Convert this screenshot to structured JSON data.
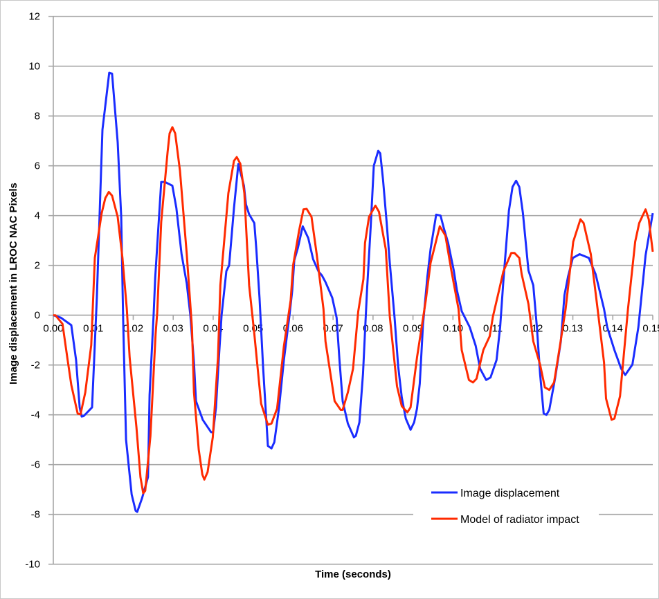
{
  "chart_data": {
    "type": "line",
    "title": "",
    "xlabel": "Time (seconds)",
    "ylabel": "Image displacement in LROC NAC Pixels",
    "xlim": [
      0,
      0.15
    ],
    "ylim": [
      -10,
      12
    ],
    "x_ticks": [
      "0.00",
      "0.01",
      "0.02",
      "0.03",
      "0.04",
      "0.05",
      "0.06",
      "0.07",
      "0.08",
      "0.09",
      "0.10",
      "0.11",
      "0.12",
      "0.13",
      "0.14",
      "0.15"
    ],
    "y_ticks": [
      "-10",
      "-8",
      "-6",
      "-4",
      "-2",
      "0",
      "2",
      "4",
      "6",
      "8",
      "10",
      "12"
    ],
    "grid": "horizontal",
    "legend_position": "bottom-right",
    "series": [
      {
        "name": "Image displacement",
        "color": "#1a2cff",
        "points": [
          [
            0,
            0
          ],
          [
            0.0019,
            -0.1
          ],
          [
            0.0045,
            -0.4
          ],
          [
            0.0057,
            -1.8
          ],
          [
            0.0066,
            -3.7
          ],
          [
            0.0071,
            -4.07
          ],
          [
            0.0076,
            -4.05
          ],
          [
            0.0097,
            -3.7
          ],
          [
            0.0109,
            0.7
          ],
          [
            0.0123,
            7.45
          ],
          [
            0.014,
            9.74
          ],
          [
            0.0147,
            9.7
          ],
          [
            0.0161,
            6.95
          ],
          [
            0.017,
            3.95
          ],
          [
            0.0175,
            -0.3
          ],
          [
            0.0182,
            -5.0
          ],
          [
            0.0196,
            -7.2
          ],
          [
            0.0206,
            -7.85
          ],
          [
            0.021,
            -7.9
          ],
          [
            0.0222,
            -7.35
          ],
          [
            0.0237,
            -6.5
          ],
          [
            0.0241,
            -3.2
          ],
          [
            0.0251,
            0
          ],
          [
            0.0255,
            1.5
          ],
          [
            0.027,
            5.35
          ],
          [
            0.0279,
            5.35
          ],
          [
            0.0288,
            5.28
          ],
          [
            0.0298,
            5.2
          ],
          [
            0.0308,
            4.3
          ],
          [
            0.0321,
            2.45
          ],
          [
            0.0334,
            1.27
          ],
          [
            0.0343,
            0
          ],
          [
            0.0352,
            -1.9
          ],
          [
            0.0357,
            -3.45
          ],
          [
            0.0374,
            -4.2
          ],
          [
            0.0395,
            -4.7
          ],
          [
            0.04,
            -4.7
          ],
          [
            0.0407,
            -3.7
          ],
          [
            0.0414,
            -1.8
          ],
          [
            0.0421,
            0
          ],
          [
            0.0433,
            1.77
          ],
          [
            0.044,
            2.0
          ],
          [
            0.0452,
            4.3
          ],
          [
            0.0463,
            6.07
          ],
          [
            0.0477,
            5.2
          ],
          [
            0.0482,
            4.45
          ],
          [
            0.049,
            4.05
          ],
          [
            0.0503,
            3.7
          ],
          [
            0.0508,
            2.65
          ],
          [
            0.0516,
            0.7
          ],
          [
            0.0525,
            -2.1
          ],
          [
            0.0537,
            -5.25
          ],
          [
            0.0546,
            -5.35
          ],
          [
            0.0553,
            -5.1
          ],
          [
            0.0565,
            -3.7
          ],
          [
            0.0577,
            -1.8
          ],
          [
            0.0591,
            0
          ],
          [
            0.0598,
            1.0
          ],
          [
            0.0603,
            2.2
          ],
          [
            0.0612,
            2.7
          ],
          [
            0.0624,
            3.57
          ],
          [
            0.0638,
            3.1
          ],
          [
            0.065,
            2.25
          ],
          [
            0.0664,
            1.75
          ],
          [
            0.0672,
            1.6
          ],
          [
            0.0681,
            1.33
          ],
          [
            0.0698,
            0.7
          ],
          [
            0.0709,
            -0.1
          ],
          [
            0.0716,
            -1.8
          ],
          [
            0.0724,
            -3.45
          ],
          [
            0.0737,
            -4.35
          ],
          [
            0.0752,
            -4.9
          ],
          [
            0.0757,
            -4.85
          ],
          [
            0.0766,
            -4.3
          ],
          [
            0.0775,
            -2.35
          ],
          [
            0.0785,
            1.0
          ],
          [
            0.0794,
            3.5
          ],
          [
            0.0802,
            6.0
          ],
          [
            0.0813,
            6.6
          ],
          [
            0.0818,
            6.5
          ],
          [
            0.0825,
            5.45
          ],
          [
            0.0834,
            3.75
          ],
          [
            0.0842,
            2.1
          ],
          [
            0.0854,
            -0.1
          ],
          [
            0.0863,
            -2.05
          ],
          [
            0.0872,
            -3.3
          ],
          [
            0.0882,
            -4.15
          ],
          [
            0.0894,
            -4.6
          ],
          [
            0.0903,
            -4.3
          ],
          [
            0.091,
            -3.75
          ],
          [
            0.0917,
            -2.75
          ],
          [
            0.0925,
            -0.4
          ],
          [
            0.0936,
            1.55
          ],
          [
            0.0944,
            2.65
          ],
          [
            0.0958,
            4.04
          ],
          [
            0.0969,
            4.0
          ],
          [
            0.0977,
            3.5
          ],
          [
            0.0988,
            2.9
          ],
          [
            0.1002,
            1.8
          ],
          [
            0.101,
            1.0
          ],
          [
            0.1022,
            0.16
          ],
          [
            0.1042,
            -0.48
          ],
          [
            0.1057,
            -1.23
          ],
          [
            0.1068,
            -2.15
          ],
          [
            0.1083,
            -2.6
          ],
          [
            0.1094,
            -2.5
          ],
          [
            0.1109,
            -1.8
          ],
          [
            0.1118,
            -0.48
          ],
          [
            0.1126,
            1.35
          ],
          [
            0.114,
            4.2
          ],
          [
            0.1149,
            5.15
          ],
          [
            0.1158,
            5.4
          ],
          [
            0.1166,
            5.15
          ],
          [
            0.1175,
            4.1
          ],
          [
            0.1189,
            1.8
          ],
          [
            0.1201,
            1.2
          ],
          [
            0.121,
            -0.48
          ],
          [
            0.1218,
            -2.35
          ],
          [
            0.1227,
            -3.95
          ],
          [
            0.1234,
            -4.0
          ],
          [
            0.1241,
            -3.8
          ],
          [
            0.1256,
            -2.5
          ],
          [
            0.127,
            -1.05
          ],
          [
            0.1279,
            0.8
          ],
          [
            0.1288,
            1.55
          ],
          [
            0.13,
            2.3
          ],
          [
            0.1317,
            2.45
          ],
          [
            0.134,
            2.3
          ],
          [
            0.1357,
            1.65
          ],
          [
            0.1378,
            0.25
          ],
          [
            0.1386,
            -0.48
          ],
          [
            0.1404,
            -1.4
          ],
          [
            0.1421,
            -2.15
          ],
          [
            0.1431,
            -2.4
          ],
          [
            0.1449,
            -1.98
          ],
          [
            0.1464,
            -0.48
          ],
          [
            0.1482,
            2.4
          ],
          [
            0.15,
            4.1
          ]
        ]
      },
      {
        "name": "Model of radiator impact",
        "color": "#ff2a00",
        "points": [
          [
            0,
            0
          ],
          [
            0.0005,
            0
          ],
          [
            0.0023,
            -0.35
          ],
          [
            0.0035,
            -1.7
          ],
          [
            0.0045,
            -2.8
          ],
          [
            0.0061,
            -3.95
          ],
          [
            0.0068,
            -3.98
          ],
          [
            0.008,
            -3.1
          ],
          [
            0.0095,
            -1.2
          ],
          [
            0.0104,
            2.3
          ],
          [
            0.0121,
            4.1
          ],
          [
            0.013,
            4.7
          ],
          [
            0.0139,
            4.95
          ],
          [
            0.0147,
            4.8
          ],
          [
            0.0161,
            3.95
          ],
          [
            0.0173,
            2.3
          ],
          [
            0.0184,
            0.25
          ],
          [
            0.0191,
            -1.7
          ],
          [
            0.0208,
            -4.5
          ],
          [
            0.0218,
            -6.5
          ],
          [
            0.0225,
            -7.15
          ],
          [
            0.023,
            -7.05
          ],
          [
            0.0243,
            -4.85
          ],
          [
            0.0256,
            -0.75
          ],
          [
            0.026,
            0.1
          ],
          [
            0.027,
            3.75
          ],
          [
            0.0286,
            6.55
          ],
          [
            0.0291,
            7.3
          ],
          [
            0.0298,
            7.55
          ],
          [
            0.0305,
            7.3
          ],
          [
            0.0317,
            5.8
          ],
          [
            0.0334,
            2.45
          ],
          [
            0.0347,
            -0.5
          ],
          [
            0.0352,
            -3.1
          ],
          [
            0.0364,
            -5.4
          ],
          [
            0.0373,
            -6.4
          ],
          [
            0.0378,
            -6.6
          ],
          [
            0.0386,
            -6.3
          ],
          [
            0.0399,
            -4.9
          ],
          [
            0.0412,
            -1.7
          ],
          [
            0.0418,
            1.2
          ],
          [
            0.0438,
            4.9
          ],
          [
            0.0452,
            6.2
          ],
          [
            0.0459,
            6.35
          ],
          [
            0.0468,
            6.08
          ],
          [
            0.0478,
            4.9
          ],
          [
            0.049,
            1.2
          ],
          [
            0.0503,
            -0.75
          ],
          [
            0.052,
            -3.55
          ],
          [
            0.0537,
            -4.4
          ],
          [
            0.0546,
            -4.35
          ],
          [
            0.056,
            -3.75
          ],
          [
            0.0577,
            -1.25
          ],
          [
            0.0594,
            0.6
          ],
          [
            0.06,
            2.0
          ],
          [
            0.0615,
            3.4
          ],
          [
            0.0626,
            4.25
          ],
          [
            0.0634,
            4.27
          ],
          [
            0.0646,
            3.95
          ],
          [
            0.0659,
            2.45
          ],
          [
            0.0676,
            0.25
          ],
          [
            0.0681,
            -1.05
          ],
          [
            0.0704,
            -3.45
          ],
          [
            0.0719,
            -3.8
          ],
          [
            0.0724,
            -3.8
          ],
          [
            0.0737,
            -3.1
          ],
          [
            0.075,
            -2.15
          ],
          [
            0.0763,
            0.15
          ],
          [
            0.0776,
            1.45
          ],
          [
            0.078,
            2.9
          ],
          [
            0.079,
            3.95
          ],
          [
            0.0806,
            4.4
          ],
          [
            0.0815,
            4.15
          ],
          [
            0.0832,
            2.65
          ],
          [
            0.0842,
            -0.05
          ],
          [
            0.086,
            -2.85
          ],
          [
            0.0872,
            -3.65
          ],
          [
            0.0886,
            -3.9
          ],
          [
            0.0894,
            -3.7
          ],
          [
            0.091,
            -1.7
          ],
          [
            0.0932,
            0.6
          ],
          [
            0.0944,
            2.1
          ],
          [
            0.0967,
            3.57
          ],
          [
            0.0981,
            3.2
          ],
          [
            0.0996,
            1.8
          ],
          [
            0.1014,
            0.25
          ],
          [
            0.1022,
            -1.4
          ],
          [
            0.104,
            -2.6
          ],
          [
            0.105,
            -2.7
          ],
          [
            0.1059,
            -2.55
          ],
          [
            0.1076,
            -1.4
          ],
          [
            0.1092,
            -0.85
          ],
          [
            0.11,
            -0.05
          ],
          [
            0.1114,
            0.9
          ],
          [
            0.1126,
            1.75
          ],
          [
            0.1146,
            2.5
          ],
          [
            0.1154,
            2.5
          ],
          [
            0.1166,
            2.3
          ],
          [
            0.1172,
            1.65
          ],
          [
            0.1189,
            0.45
          ],
          [
            0.1201,
            -1.05
          ],
          [
            0.1218,
            -1.98
          ],
          [
            0.123,
            -2.9
          ],
          [
            0.1241,
            -3.0
          ],
          [
            0.1253,
            -2.7
          ],
          [
            0.1267,
            -1.3
          ],
          [
            0.1282,
            0.25
          ],
          [
            0.1301,
            2.95
          ],
          [
            0.1319,
            3.85
          ],
          [
            0.1327,
            3.7
          ],
          [
            0.1345,
            2.45
          ],
          [
            0.1362,
            0.25
          ],
          [
            0.1378,
            -1.9
          ],
          [
            0.1383,
            -3.35
          ],
          [
            0.1397,
            -4.2
          ],
          [
            0.1404,
            -4.15
          ],
          [
            0.1418,
            -3.25
          ],
          [
            0.1438,
            0.25
          ],
          [
            0.1456,
            2.95
          ],
          [
            0.1466,
            3.7
          ],
          [
            0.1482,
            4.25
          ],
          [
            0.149,
            3.85
          ],
          [
            0.15,
            2.55
          ]
        ]
      }
    ]
  }
}
